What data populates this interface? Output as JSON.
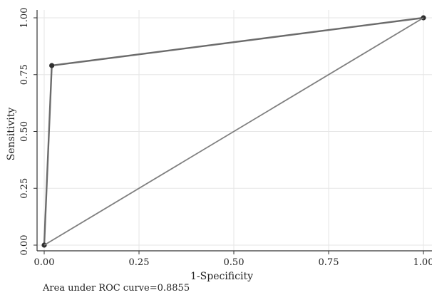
{
  "chart_data": {
    "type": "line",
    "title": "",
    "xlabel": "1-Specificity",
    "ylabel": "Sensitivity",
    "xlim": [
      0,
      1
    ],
    "ylim": [
      0,
      1
    ],
    "x_ticks": [
      "0.00",
      "0.25",
      "0.50",
      "0.75",
      "1.00"
    ],
    "y_ticks": [
      "0.00",
      "0.25",
      "0.50",
      "0.75",
      "1.00"
    ],
    "grid": true,
    "series": [
      {
        "x": [
          0,
          0.02,
          1
        ],
        "y": [
          0,
          0.79,
          1
        ],
        "markers": true
      },
      {
        "x": [
          0,
          1
        ],
        "y": [
          0,
          1
        ],
        "markers": false
      }
    ],
    "annotation": "Area under ROC curve=0.8855",
    "colors": {
      "curve": "#6b6b6b",
      "reference": "#7f7f7f",
      "marker": "#2f2f2f",
      "grid": "#e6e6e6",
      "frame": "#333333"
    }
  }
}
